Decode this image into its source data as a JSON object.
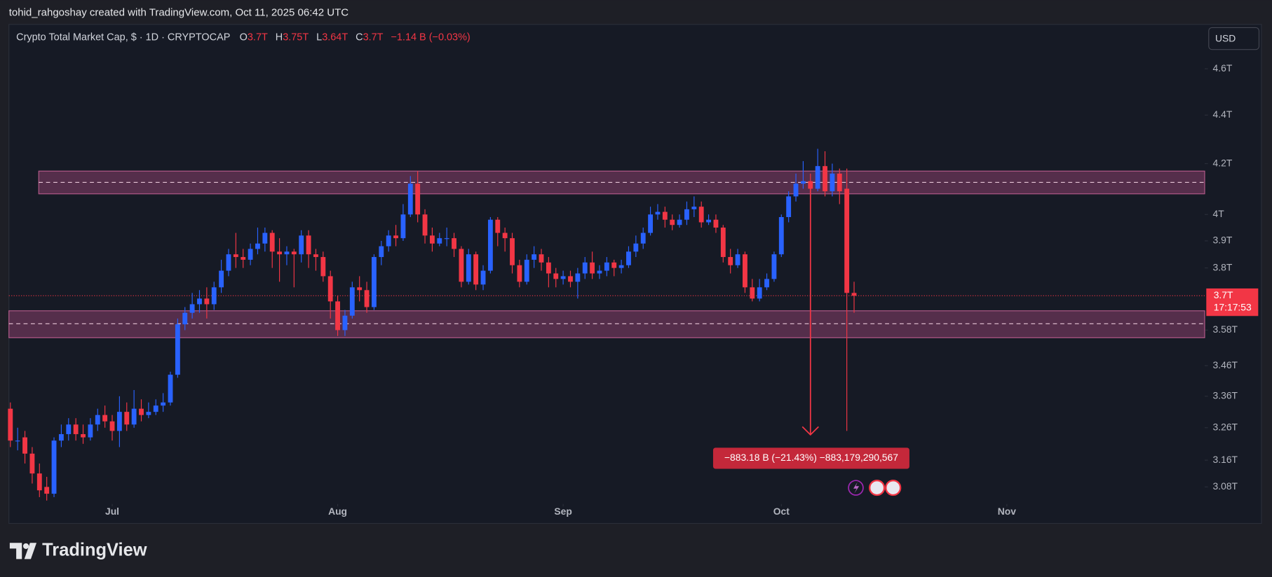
{
  "header": {
    "attribution": "tohid_rahgoshay created with TradingView.com, Oct 11, 2025 06:42 UTC"
  },
  "footer": {
    "brand": "TradingView"
  },
  "chart_data": {
    "type": "candlestick",
    "title": "Crypto Total Market Cap, $ · 1D · CRYPTOCAP",
    "ohlc_legend": [
      {
        "key": "O",
        "value": "3.7T"
      },
      {
        "key": "H",
        "value": "3.75T"
      },
      {
        "key": "L",
        "value": "3.64T"
      },
      {
        "key": "C",
        "value": "3.7T"
      }
    ],
    "change": "−1.14 B (−0.03%)",
    "currency": "USD",
    "up_color": "#2962ff",
    "down_color": "#f23645",
    "log_scale": true,
    "xlim": [
      -0.2,
      164.2
    ],
    "xticks": [
      {
        "value": 14,
        "label": "Jul"
      },
      {
        "value": 45,
        "label": "Aug"
      },
      {
        "value": 76,
        "label": "Sep"
      },
      {
        "value": 106,
        "label": "Oct"
      },
      {
        "value": 137,
        "label": "Nov"
      }
    ],
    "ylim": [
      3.03,
      4.8
    ],
    "yticks": [
      {
        "value": 3.08,
        "label": "3.08T"
      },
      {
        "value": 3.16,
        "label": "3.16T"
      },
      {
        "value": 3.26,
        "label": "3.26T"
      },
      {
        "value": 3.36,
        "label": "3.36T"
      },
      {
        "value": 3.46,
        "label": "3.46T"
      },
      {
        "value": 3.58,
        "label": "3.58T"
      },
      {
        "value": 3.8,
        "label": "3.8T"
      },
      {
        "value": 3.9,
        "label": "3.9T"
      },
      {
        "value": 4,
        "label": "4T"
      },
      {
        "value": 4.2,
        "label": "4.2T"
      },
      {
        "value": 4.4,
        "label": "4.4T"
      },
      {
        "value": 4.6,
        "label": "4.6T"
      }
    ],
    "open": [
      3.32,
      3.22,
      3.23,
      3.18,
      3.12,
      3.08,
      3.06,
      3.22,
      3.24,
      3.27,
      3.24,
      3.23,
      3.27,
      3.3,
      3.28,
      3.25,
      3.31,
      3.27,
      3.32,
      3.3,
      3.31,
      3.33,
      3.34,
      3.43,
      3.6,
      3.64,
      3.67,
      3.69,
      3.67,
      3.73,
      3.79,
      3.85,
      3.84,
      3.83,
      3.87,
      3.89,
      3.93,
      3.86,
      3.85,
      3.86,
      3.85,
      3.92,
      3.85,
      3.84,
      3.77,
      3.68,
      3.58,
      3.63,
      3.73,
      3.72,
      3.66,
      3.84,
      3.88,
      3.92,
      3.91,
      4.0,
      4.12,
      4.0,
      3.92,
      3.89,
      3.91,
      3.91,
      3.87,
      3.75,
      3.85,
      3.74,
      3.79,
      3.98,
      3.93,
      3.91,
      3.81,
      3.75,
      3.83,
      3.85,
      3.82,
      3.78,
      3.76,
      3.77,
      3.75,
      3.78,
      3.82,
      3.78,
      3.79,
      3.82,
      3.8,
      3.81,
      3.86,
      3.89,
      3.93,
      4.0,
      4.01,
      3.98,
      3.96,
      3.98,
      4.02,
      4.03,
      3.97,
      3.98,
      3.95,
      3.84,
      3.81,
      3.85,
      3.73,
      3.69,
      3.73,
      3.76,
      3.85,
      3.99,
      4.07,
      4.12,
      4.13,
      4.1,
      4.19,
      4.09,
      4.16,
      4.1,
      3.71
    ],
    "high": [
      3.34,
      3.26,
      3.25,
      3.2,
      3.15,
      3.11,
      3.23,
      3.27,
      3.29,
      3.29,
      3.27,
      3.29,
      3.32,
      3.33,
      3.3,
      3.36,
      3.34,
      3.38,
      3.35,
      3.34,
      3.35,
      3.37,
      3.44,
      3.62,
      3.66,
      3.71,
      3.72,
      3.73,
      3.75,
      3.83,
      3.87,
      3.93,
      3.87,
      3.89,
      3.95,
      3.95,
      3.94,
      3.91,
      3.88,
      3.87,
      3.94,
      3.94,
      3.87,
      3.86,
      3.79,
      3.7,
      3.65,
      3.75,
      3.77,
      3.75,
      3.85,
      3.9,
      3.94,
      3.96,
      4.04,
      4.15,
      4.17,
      4.02,
      3.95,
      3.93,
      3.95,
      3.93,
      3.88,
      3.87,
      3.86,
      3.81,
      3.99,
      3.99,
      3.95,
      3.93,
      3.83,
      3.85,
      3.88,
      3.87,
      3.84,
      3.8,
      3.79,
      3.79,
      3.8,
      3.84,
      3.86,
      3.81,
      3.84,
      3.83,
      3.83,
      3.88,
      3.92,
      3.95,
      4.03,
      4.04,
      4.03,
      4.0,
      4.0,
      4.05,
      4.07,
      4.05,
      4.0,
      4.0,
      3.96,
      3.87,
      3.87,
      3.86,
      3.76,
      3.76,
      3.78,
      3.86,
      4.0,
      4.09,
      4.16,
      4.21,
      4.16,
      4.26,
      4.25,
      4.2,
      4.18,
      4.18,
      3.75
    ],
    "low": [
      3.2,
      3.19,
      3.15,
      3.09,
      3.05,
      3.04,
      3.05,
      3.2,
      3.22,
      3.22,
      3.21,
      3.22,
      3.25,
      3.26,
      3.22,
      3.2,
      3.25,
      3.26,
      3.28,
      3.29,
      3.3,
      3.31,
      3.33,
      3.42,
      3.58,
      3.62,
      3.64,
      3.62,
      3.65,
      3.71,
      3.77,
      3.8,
      3.8,
      3.81,
      3.85,
      3.86,
      3.8,
      3.75,
      3.81,
      3.73,
      3.82,
      3.8,
      3.79,
      3.75,
      3.62,
      3.56,
      3.56,
      3.62,
      3.68,
      3.64,
      3.65,
      3.81,
      3.86,
      3.88,
      3.9,
      3.99,
      3.97,
      3.89,
      3.86,
      3.88,
      3.88,
      3.84,
      3.73,
      3.74,
      3.72,
      3.72,
      3.78,
      3.88,
      3.86,
      3.78,
      3.73,
      3.74,
      3.8,
      3.79,
      3.73,
      3.73,
      3.74,
      3.73,
      3.69,
      3.76,
      3.76,
      3.76,
      3.77,
      3.77,
      3.78,
      3.8,
      3.84,
      3.87,
      3.92,
      3.98,
      3.95,
      3.94,
      3.95,
      3.96,
      3.99,
      3.95,
      3.96,
      3.93,
      3.82,
      3.78,
      3.8,
      3.71,
      3.68,
      3.68,
      3.72,
      3.75,
      3.84,
      3.97,
      4.05,
      4.1,
      4.08,
      4.09,
      4.07,
      4.07,
      4.04,
      3.25,
      3.64
    ],
    "close": [
      3.22,
      3.22,
      3.18,
      3.12,
      3.07,
      3.06,
      3.22,
      3.24,
      3.27,
      3.24,
      3.23,
      3.27,
      3.3,
      3.28,
      3.25,
      3.31,
      3.27,
      3.32,
      3.3,
      3.31,
      3.33,
      3.34,
      3.43,
      3.6,
      3.64,
      3.67,
      3.69,
      3.67,
      3.73,
      3.79,
      3.85,
      3.84,
      3.83,
      3.87,
      3.89,
      3.93,
      3.86,
      3.85,
      3.86,
      3.85,
      3.92,
      3.85,
      3.84,
      3.77,
      3.68,
      3.58,
      3.63,
      3.73,
      3.72,
      3.66,
      3.84,
      3.88,
      3.92,
      3.91,
      4.0,
      4.12,
      4.0,
      3.92,
      3.89,
      3.91,
      3.91,
      3.87,
      3.75,
      3.85,
      3.74,
      3.79,
      3.98,
      3.93,
      3.91,
      3.81,
      3.75,
      3.83,
      3.85,
      3.82,
      3.78,
      3.76,
      3.77,
      3.75,
      3.78,
      3.82,
      3.78,
      3.79,
      3.82,
      3.8,
      3.81,
      3.86,
      3.89,
      3.93,
      4.0,
      4.01,
      3.98,
      3.96,
      3.98,
      4.02,
      4.03,
      3.97,
      3.98,
      3.95,
      3.84,
      3.81,
      3.85,
      3.73,
      3.69,
      3.73,
      3.76,
      3.85,
      3.99,
      4.07,
      4.12,
      4.13,
      4.1,
      4.19,
      4.09,
      4.16,
      4.09,
      3.71,
      3.7
    ],
    "zones": [
      {
        "from": 4.08,
        "to": 4.17,
        "mid": 4.125,
        "x_start": 3.9
      },
      {
        "from": 3.554,
        "to": 3.647,
        "mid": 3.602,
        "x_start": -0.2
      }
    ],
    "last_price": {
      "value": 3.7,
      "label": "3.7T",
      "countdown": "17:17:53"
    },
    "measure": {
      "x": 110,
      "from": 4.121,
      "to": 3.238,
      "label": "−883.18 B (−21.43%) −883,179,290,567"
    }
  }
}
